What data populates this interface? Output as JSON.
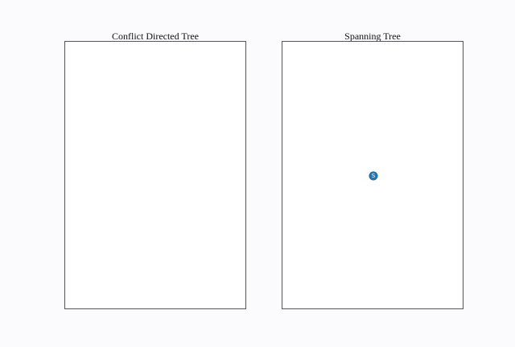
{
  "panels": [
    {
      "title": "Conflict Directed Tree",
      "nodes": []
    },
    {
      "title": "Spanning Tree",
      "nodes": [
        {
          "label": "S",
          "color": "#1f77b4"
        }
      ]
    }
  ]
}
